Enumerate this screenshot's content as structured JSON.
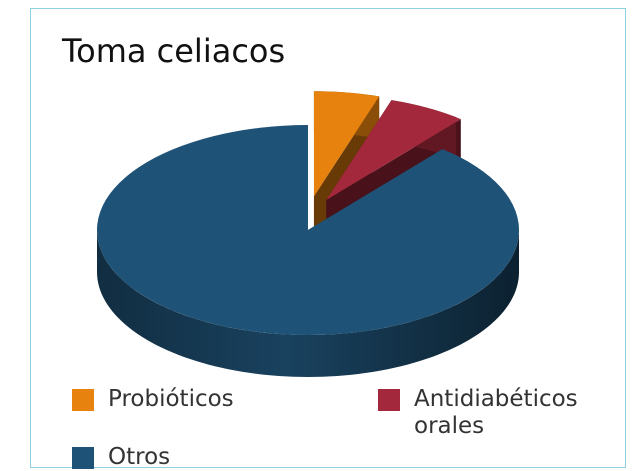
{
  "chart_data": {
    "type": "pie3d",
    "title": "Toma celiacos",
    "categories": [
      "Probióticos",
      "Antidiabéticos orales",
      "Otros"
    ],
    "values": [
      5,
      6,
      89
    ],
    "colors": [
      "#e8820e",
      "#a3283b",
      "#1f5277"
    ],
    "exploded": [
      true,
      true,
      false
    ],
    "legend": "bottom"
  }
}
